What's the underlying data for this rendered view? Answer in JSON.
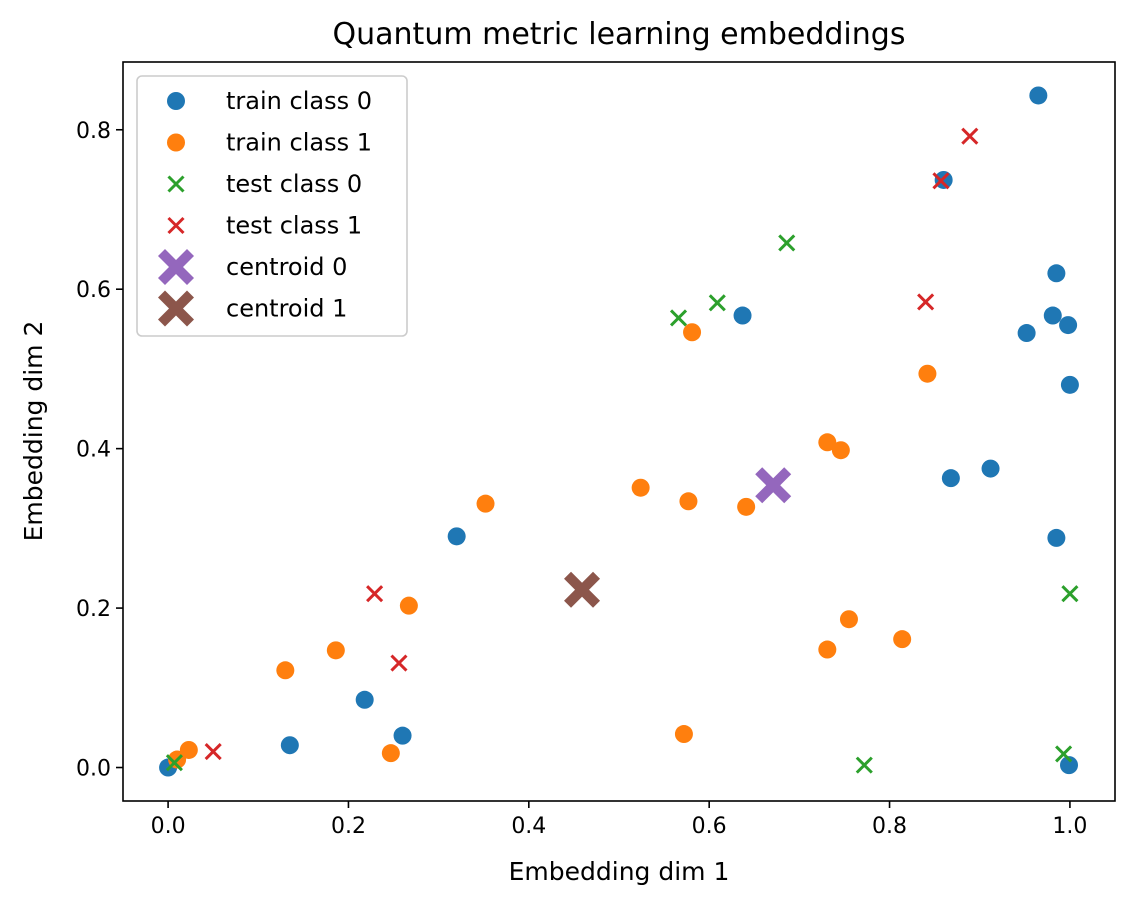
{
  "chart_data": {
    "type": "scatter",
    "title": "Quantum metric learning embeddings",
    "xlabel": "Embedding dim 1",
    "ylabel": "Embedding dim 2",
    "xlim": [
      -0.05,
      1.05
    ],
    "ylim": [
      -0.042,
      0.885
    ],
    "xticks": [
      "0.0",
      "0.2",
      "0.4",
      "0.6",
      "0.8",
      "1.0"
    ],
    "yticks": [
      "0.0",
      "0.2",
      "0.4",
      "0.6",
      "0.8"
    ],
    "grid": false,
    "legend_position": "upper-left",
    "series": [
      {
        "name": "train class 0",
        "marker": "circle",
        "color": "#1f77b4",
        "points": [
          [
            0.0,
            0.0
          ],
          [
            0.135,
            0.028
          ],
          [
            0.218,
            0.085
          ],
          [
            0.26,
            0.04
          ],
          [
            0.32,
            0.29
          ],
          [
            0.637,
            0.567
          ],
          [
            0.86,
            0.737
          ],
          [
            0.868,
            0.363
          ],
          [
            0.912,
            0.375
          ],
          [
            0.952,
            0.545
          ],
          [
            0.965,
            0.843
          ],
          [
            0.981,
            0.567
          ],
          [
            0.985,
            0.62
          ],
          [
            0.985,
            0.288
          ],
          [
            0.998,
            0.555
          ],
          [
            1.0,
            0.48
          ],
          [
            0.999,
            0.003
          ]
        ]
      },
      {
        "name": "train class 1",
        "marker": "circle",
        "color": "#ff7f0e",
        "points": [
          [
            0.01,
            0.01
          ],
          [
            0.023,
            0.022
          ],
          [
            0.13,
            0.122
          ],
          [
            0.186,
            0.147
          ],
          [
            0.247,
            0.018
          ],
          [
            0.267,
            0.203
          ],
          [
            0.352,
            0.331
          ],
          [
            0.524,
            0.351
          ],
          [
            0.572,
            0.042
          ],
          [
            0.577,
            0.334
          ],
          [
            0.581,
            0.546
          ],
          [
            0.641,
            0.327
          ],
          [
            0.731,
            0.408
          ],
          [
            0.731,
            0.148
          ],
          [
            0.746,
            0.398
          ],
          [
            0.755,
            0.186
          ],
          [
            0.814,
            0.161
          ],
          [
            0.842,
            0.494
          ]
        ]
      },
      {
        "name": "test class 0",
        "marker": "x",
        "color": "#2ca02c",
        "points": [
          [
            0.007,
            0.006
          ],
          [
            0.566,
            0.564
          ],
          [
            0.609,
            0.583
          ],
          [
            0.686,
            0.658
          ],
          [
            0.772,
            0.003
          ],
          [
            0.993,
            0.017
          ],
          [
            1.0,
            0.218
          ]
        ]
      },
      {
        "name": "test class 1",
        "marker": "x",
        "color": "#d62728",
        "points": [
          [
            0.05,
            0.02
          ],
          [
            0.229,
            0.218
          ],
          [
            0.256,
            0.131
          ],
          [
            0.84,
            0.584
          ],
          [
            0.857,
            0.736
          ],
          [
            0.889,
            0.792
          ]
        ]
      },
      {
        "name": "centroid 0",
        "marker": "X",
        "color": "#9467bd",
        "points": [
          [
            0.671,
            0.354
          ]
        ]
      },
      {
        "name": "centroid 1",
        "marker": "X",
        "color": "#8c564b",
        "points": [
          [
            0.459,
            0.223
          ]
        ]
      }
    ]
  }
}
